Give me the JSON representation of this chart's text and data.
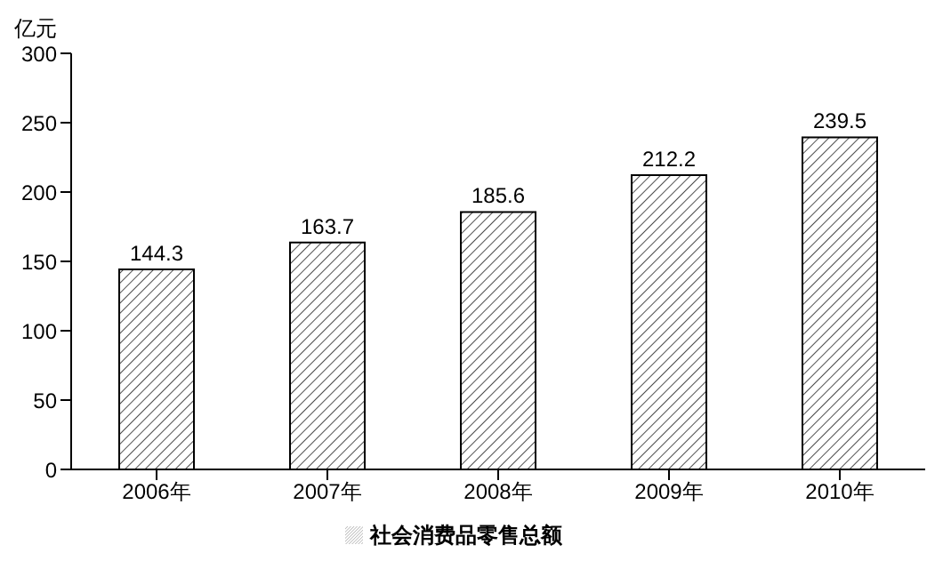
{
  "chart_data": {
    "type": "bar",
    "ylabel": "亿元",
    "categories": [
      "2006年",
      "2007年",
      "2008年",
      "2009年",
      "2010年"
    ],
    "series": [
      {
        "name": "社会消费品零售总额",
        "color": "#000000",
        "values": [
          144.3,
          163.7,
          185.6,
          212.2,
          239.5
        ]
      }
    ],
    "ylim": [
      0,
      300
    ],
    "yticks": [
      0,
      50,
      100,
      150,
      200,
      250,
      300
    ],
    "data_labels": true,
    "legend": "bottom",
    "grid": false
  }
}
